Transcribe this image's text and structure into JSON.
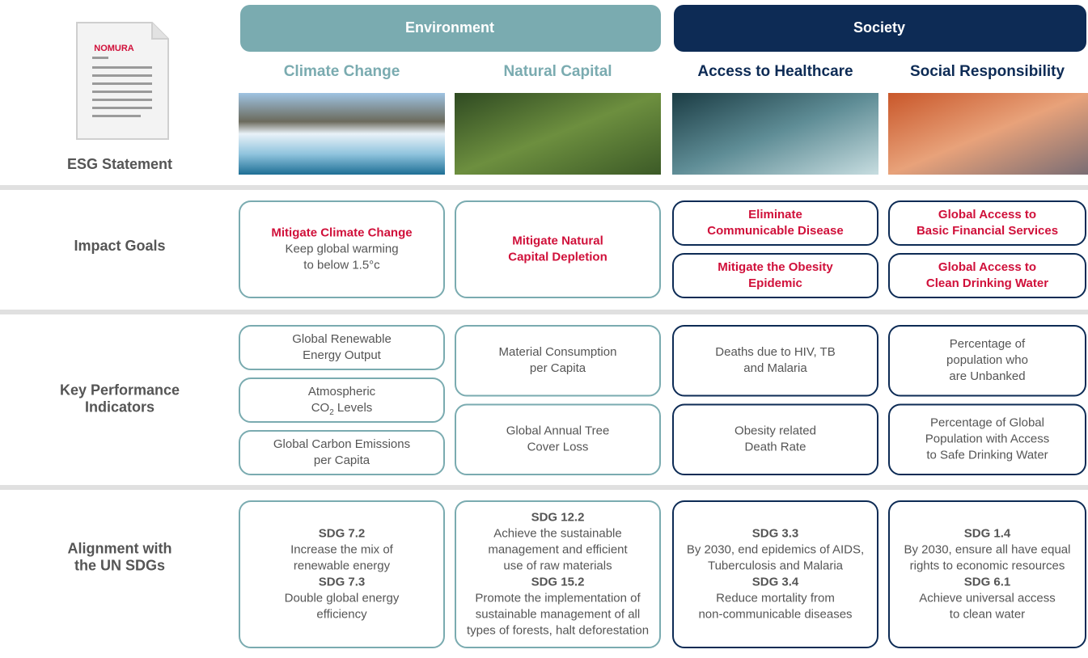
{
  "header": {
    "logo": "NOMURA",
    "label": "ESG Statement"
  },
  "groups": [
    {
      "name": "Environment",
      "color": "#7aabb0",
      "columns": [
        "Climate Change",
        "Natural Capital"
      ]
    },
    {
      "name": "Society",
      "color": "#0d2b55",
      "columns": [
        "Access to Healthcare",
        "Social Responsibility"
      ]
    }
  ],
  "rows": [
    {
      "label": [
        "Impact Goals"
      ],
      "cells": [
        [
          {
            "title": [
              "Mitigate Climate Change"
            ],
            "lines": [
              "Keep global warming",
              "to below 1.5°c"
            ]
          }
        ],
        [
          {
            "title": [
              "Mitigate Natural",
              "Capital Depletion"
            ]
          }
        ],
        [
          {
            "title": [
              "Eliminate",
              "Communicable Disease"
            ]
          },
          {
            "title": [
              "Mitigate the Obesity",
              "Epidemic"
            ]
          }
        ],
        [
          {
            "title": [
              "Global Access to",
              "Basic Financial Services"
            ]
          },
          {
            "title": [
              "Global Access to",
              "Clean Drinking Water"
            ]
          }
        ]
      ]
    },
    {
      "label": [
        "Key Performance",
        "Indicators"
      ],
      "cells": [
        [
          {
            "lines": [
              "Global Renewable",
              "Energy Output"
            ]
          },
          {
            "lines": [
              "Atmospheric",
              {
                "text": "CO",
                "sub": "2",
                "tail": " Levels"
              }
            ]
          },
          {
            "lines": [
              "Global Carbon Emissions",
              "per Capita"
            ]
          }
        ],
        [
          {
            "lines": [
              "Material Consumption",
              "per Capita"
            ]
          },
          {
            "lines": [
              "Global Annual Tree",
              "Cover Loss"
            ]
          }
        ],
        [
          {
            "lines": [
              "Deaths due to HIV, TB",
              "and Malaria"
            ]
          },
          {
            "lines": [
              "Obesity related",
              "Death Rate"
            ]
          }
        ],
        [
          {
            "lines": [
              "Percentage of",
              "population who",
              "are Unbanked"
            ]
          },
          {
            "lines": [
              "Percentage of Global",
              "Population with Access",
              "to Safe Drinking Water"
            ]
          }
        ]
      ]
    },
    {
      "label": [
        "Alignment with",
        "the UN SDGs"
      ],
      "cells": [
        [
          {
            "sections": [
              {
                "heading": "SDG 7.2",
                "lines": [
                  "Increase the mix of",
                  "renewable energy"
                ]
              },
              {
                "heading": "SDG 7.3",
                "lines": [
                  "Double global energy",
                  "efficiency"
                ]
              }
            ]
          }
        ],
        [
          {
            "sections": [
              {
                "heading": "SDG 12.2",
                "lines": [
                  "Achieve the sustainable",
                  "management and efficient",
                  "use of raw materials"
                ]
              },
              {
                "heading": "SDG 15.2",
                "lines": [
                  "Promote the implementation of",
                  "sustainable management of all",
                  "types of forests, halt deforestation"
                ]
              }
            ]
          }
        ],
        [
          {
            "sections": [
              {
                "heading": "SDG 3.3",
                "lines": [
                  "By 2030, end epidemics of AIDS,",
                  "Tuberculosis and Malaria"
                ]
              },
              {
                "heading": "SDG 3.4",
                "lines": [
                  "Reduce mortality from",
                  "non-communicable diseases"
                ]
              }
            ]
          }
        ],
        [
          {
            "sections": [
              {
                "heading": "SDG 1.4",
                "lines": [
                  "By 2030, ensure all have equal",
                  "rights to economic resources"
                ]
              },
              {
                "heading": "SDG 6.1",
                "lines": [
                  "Achieve universal access",
                  "to clean water"
                ]
              }
            ]
          }
        ]
      ]
    }
  ]
}
